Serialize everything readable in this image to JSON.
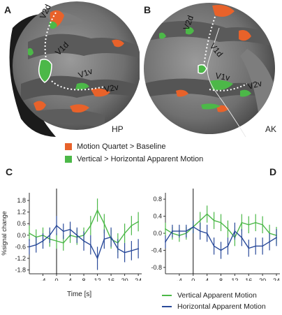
{
  "panels": {
    "a": "A",
    "b": "B",
    "c": "C",
    "d": "D"
  },
  "brains": {
    "left": {
      "subject": "HP",
      "labels": [
        "V2d",
        "V1d",
        "V1v",
        "V2v"
      ]
    },
    "right": {
      "subject": "AK",
      "labels": [
        "V2d",
        "V1d",
        "V1v",
        "V2v"
      ]
    }
  },
  "legend": {
    "items": [
      {
        "label": "Motion Quartet > Baseline",
        "color": "#e8622a"
      },
      {
        "label": "Vertical > Horizontal Apparent Motion",
        "color": "#4cb848"
      }
    ]
  },
  "line_legend": {
    "items": [
      {
        "label": "Vertical Apparent Motion",
        "color": "#4cb848"
      },
      {
        "label": "Horizontal Apparent Motion",
        "color": "#2a4a9a"
      }
    ]
  },
  "chart_data": [
    {
      "type": "line",
      "panel": "C",
      "xlabel": "Time [s]",
      "ylabel": "%signal change",
      "xlim": [
        -8,
        25
      ],
      "ylim": [
        -2.0,
        2.2
      ],
      "xticks": [
        -4,
        0,
        4,
        8,
        12,
        16,
        20,
        24
      ],
      "yticks": [
        1.8,
        1.2,
        0.6,
        0.0,
        -0.6,
        -1.2,
        -1.8
      ],
      "ytick_labels": [
        "1.8",
        "1.2",
        "0.6",
        "0.0",
        "-0.6",
        "-1.2",
        "-1.8"
      ],
      "series": [
        {
          "name": "Vertical Apparent Motion",
          "color": "#4cb848",
          "x": [
            -8,
            -6,
            -4,
            -2,
            0,
            2,
            4,
            6,
            8,
            10,
            12,
            14,
            16,
            18,
            20,
            22,
            24
          ],
          "y": [
            0.1,
            -0.1,
            0.0,
            -0.2,
            -0.3,
            -0.4,
            0.0,
            -0.1,
            0.0,
            0.5,
            1.3,
            0.6,
            -0.2,
            -0.4,
            0.1,
            0.5,
            0.7
          ],
          "err": [
            0.4,
            0.4,
            0.4,
            0.4,
            0.4,
            0.4,
            0.4,
            0.4,
            0.4,
            0.5,
            0.6,
            0.5,
            0.5,
            0.5,
            0.5,
            0.5,
            0.5
          ]
        },
        {
          "name": "Horizontal Apparent Motion",
          "color": "#2a4a9a",
          "x": [
            -8,
            -6,
            -4,
            -2,
            0,
            2,
            4,
            6,
            8,
            10,
            12,
            14,
            16,
            18,
            20,
            22,
            24
          ],
          "y": [
            -0.6,
            -0.5,
            -0.3,
            0.0,
            0.5,
            0.2,
            0.3,
            0.0,
            -0.3,
            -0.5,
            -1.2,
            -0.2,
            -0.1,
            -0.7,
            -0.9,
            -0.8,
            -0.7
          ],
          "err": [
            0.4,
            0.4,
            0.4,
            0.4,
            0.5,
            0.4,
            0.4,
            0.4,
            0.5,
            0.5,
            0.6,
            0.5,
            0.5,
            0.5,
            0.5,
            0.5,
            0.5
          ]
        }
      ]
    },
    {
      "type": "line",
      "panel": "D",
      "xlabel": "",
      "ylabel": "",
      "xlim": [
        -8,
        25
      ],
      "ylim": [
        -0.95,
        0.95
      ],
      "xticks": [
        -4,
        0,
        4,
        8,
        12,
        16,
        20,
        24
      ],
      "yticks": [
        0.8,
        0.4,
        0.0,
        -0.4,
        -0.8
      ],
      "ytick_labels": [
        "0.8",
        "0.4",
        "0.0",
        "-0.4",
        "-0.8"
      ],
      "series": [
        {
          "name": "Vertical Apparent Motion",
          "color": "#4cb848",
          "x": [
            -8,
            -6,
            -4,
            -2,
            0,
            2,
            4,
            6,
            8,
            10,
            12,
            14,
            16,
            18,
            20,
            22,
            24
          ],
          "y": [
            0.1,
            0.0,
            -0.05,
            0.0,
            0.15,
            0.3,
            0.45,
            0.3,
            0.25,
            0.1,
            -0.1,
            0.25,
            0.2,
            0.25,
            0.2,
            0.0,
            -0.05
          ],
          "err": [
            0.15,
            0.15,
            0.15,
            0.15,
            0.15,
            0.2,
            0.2,
            0.2,
            0.2,
            0.2,
            0.2,
            0.2,
            0.2,
            0.2,
            0.2,
            0.2,
            0.2
          ]
        },
        {
          "name": "Horizontal Apparent Motion",
          "color": "#2a4a9a",
          "x": [
            -8,
            -6,
            -4,
            -2,
            0,
            2,
            4,
            6,
            8,
            10,
            12,
            14,
            16,
            18,
            20,
            22,
            24
          ],
          "y": [
            -0.2,
            0.05,
            0.05,
            0.05,
            0.15,
            0.05,
            0.0,
            -0.3,
            -0.4,
            -0.3,
            0.05,
            -0.1,
            -0.35,
            -0.3,
            -0.3,
            -0.2,
            -0.1
          ],
          "err": [
            0.15,
            0.15,
            0.15,
            0.15,
            0.15,
            0.2,
            0.2,
            0.2,
            0.2,
            0.2,
            0.2,
            0.2,
            0.2,
            0.2,
            0.2,
            0.2,
            0.2
          ]
        }
      ]
    }
  ]
}
